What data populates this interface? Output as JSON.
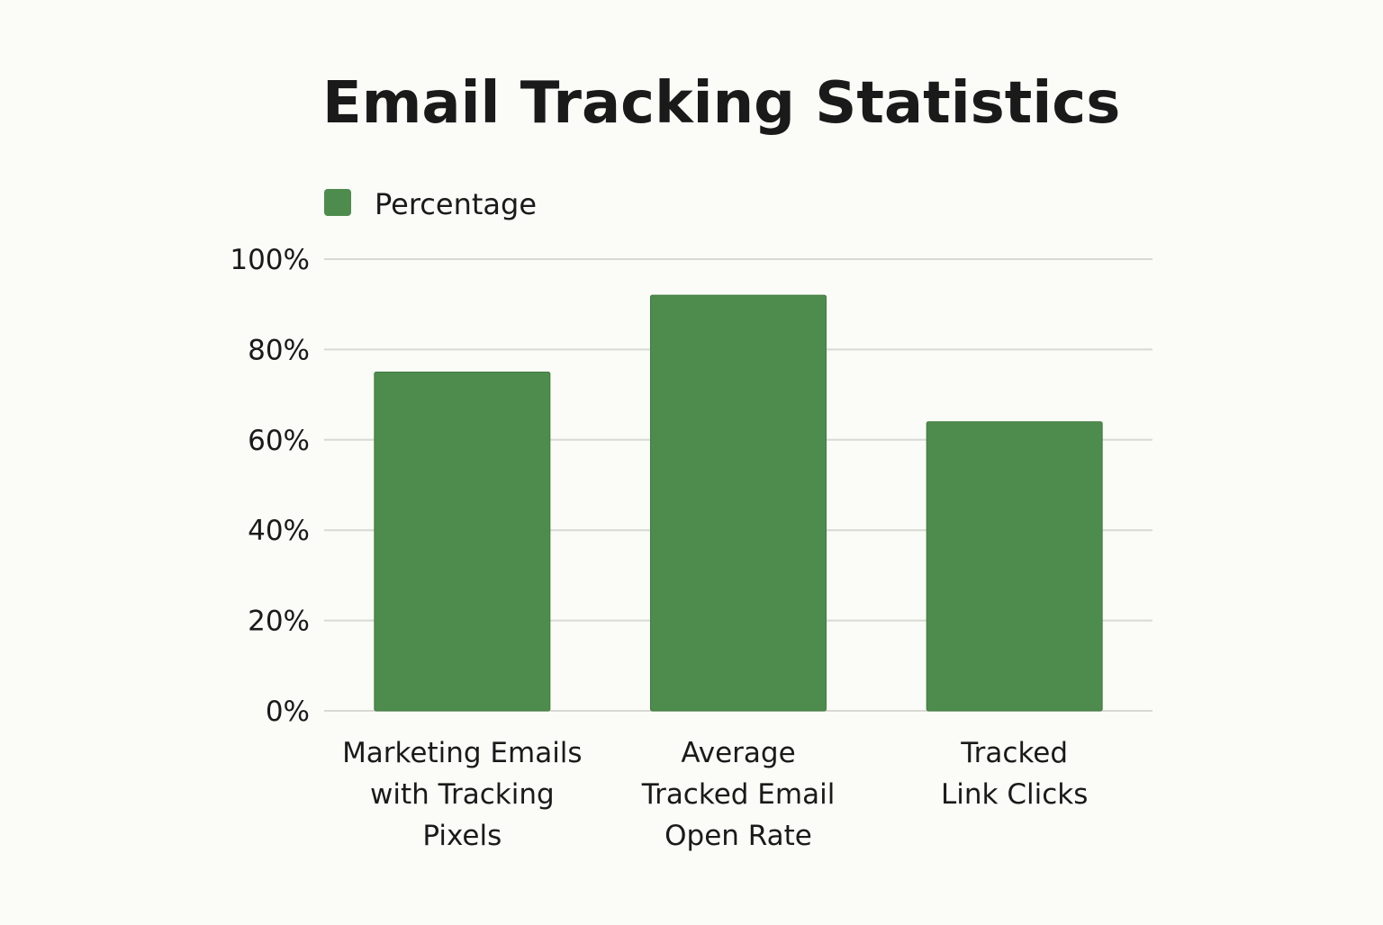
{
  "chart_data": {
    "type": "bar",
    "title": "Email Tracking Statistics",
    "categories": [
      [
        "Marketing Emails",
        "with Tracking",
        "Pixels"
      ],
      [
        "Average",
        "Tracked Email",
        "Open Rate"
      ],
      [
        "Tracked",
        "Link Clicks"
      ]
    ],
    "series": [
      {
        "name": "Percentage",
        "values": [
          75,
          92,
          64
        ],
        "color": "#4e8c4e"
      }
    ],
    "xlabel": "",
    "ylabel": "",
    "ylim": [
      0,
      100
    ],
    "yticks": [
      0,
      20,
      40,
      60,
      80,
      100
    ],
    "ytick_labels": [
      "0%",
      "20%",
      "40%",
      "60%",
      "80%",
      "100%"
    ],
    "grid": true,
    "legend": "top-left",
    "colors": {
      "background": "#fbfbf7",
      "bar": "#4e8c4e",
      "grid": "#d9d9d4",
      "text": "#1a1a1a"
    }
  }
}
